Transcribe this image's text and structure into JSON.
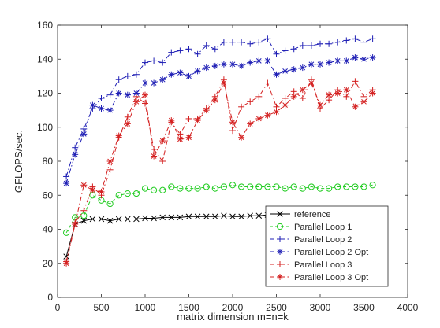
{
  "chart_data": {
    "type": "line",
    "title": "",
    "xlabel": "matrix dimension m=n=k",
    "ylabel": "GFLOPS/sec.",
    "xlim": [
      0,
      4000
    ],
    "ylim": [
      0,
      160
    ],
    "xticks": [
      0,
      500,
      1000,
      1500,
      2000,
      2500,
      3000,
      3500,
      4000
    ],
    "yticks": [
      0,
      20,
      40,
      60,
      80,
      100,
      120,
      140,
      160
    ],
    "grid": false,
    "legend_position": "bottom-right",
    "x": [
      100,
      200,
      300,
      400,
      500,
      600,
      700,
      800,
      900,
      1000,
      1100,
      1200,
      1300,
      1400,
      1500,
      1600,
      1700,
      1800,
      1900,
      2000,
      2100,
      2200,
      2300,
      2400,
      2500,
      2600,
      2700,
      2800,
      2900,
      3000,
      3100,
      3200,
      3300,
      3400,
      3500,
      3600
    ],
    "series": [
      {
        "name": "reference",
        "color": "#000000",
        "marker": "x",
        "dash": "solid",
        "values": [
          24,
          43,
          45,
          46,
          46,
          45,
          46,
          46,
          46,
          46.5,
          46.5,
          47,
          47,
          47,
          47.5,
          47.5,
          47.5,
          47.5,
          48,
          47.5,
          47.5,
          48,
          48,
          48.5,
          48,
          48,
          48,
          48,
          48,
          48,
          48,
          48,
          48,
          48,
          48,
          48
        ]
      },
      {
        "name": "Parallel Loop 1",
        "color": "#22cc22",
        "marker": "circle",
        "dash": "dashed",
        "values": [
          38,
          47,
          48,
          60,
          57,
          55,
          60,
          61,
          61,
          64,
          63,
          63,
          65,
          64,
          64,
          64,
          65,
          64,
          65,
          66,
          65,
          65,
          65,
          65,
          65,
          64,
          65,
          64,
          65,
          64,
          64,
          65,
          65,
          65,
          65,
          66
        ]
      },
      {
        "name": "Parallel Loop 2",
        "color": "#1f1fb5",
        "marker": "plus",
        "dash": "dashdot",
        "values": [
          71,
          88,
          99,
          111,
          117,
          119,
          128,
          130,
          131,
          138,
          139,
          138,
          144,
          145,
          146,
          143,
          148,
          146,
          150,
          150,
          150,
          149,
          150,
          152,
          143,
          145,
          146,
          148,
          148,
          149,
          149,
          150,
          151,
          152,
          150,
          152
        ]
      },
      {
        "name": "Parallel Loop 2 Opt",
        "color": "#1f1fb5",
        "marker": "star",
        "dash": "dashdot",
        "values": [
          67,
          84,
          96,
          113,
          111,
          110,
          120,
          119,
          120,
          126,
          126,
          128,
          131,
          132,
          130,
          133,
          135,
          136,
          137,
          137,
          136,
          138,
          139,
          139,
          131,
          133,
          134,
          135,
          137,
          137,
          138,
          139,
          139,
          141,
          140,
          141
        ]
      },
      {
        "name": "Parallel Loop 3",
        "color": "#d42020",
        "marker": "plus",
        "dash": "dashdot",
        "values": [
          21,
          44,
          51,
          65,
          60,
          75,
          94,
          106,
          118,
          114,
          87,
          80,
          103,
          96,
          105,
          105,
          111,
          118,
          128,
          98,
          112,
          115,
          118,
          126,
          112,
          117,
          121,
          117,
          128,
          111,
          116,
          122,
          118,
          127,
          118,
          122
        ]
      },
      {
        "name": "Parallel Loop 3 Opt",
        "color": "#d42020",
        "marker": "star",
        "dash": "dashdot",
        "values": [
          20,
          43,
          66,
          63,
          62,
          80,
          95,
          102,
          115,
          119,
          83,
          92,
          104,
          93,
          94,
          104,
          110,
          116,
          126,
          103,
          94,
          102,
          105,
          107,
          109,
          113,
          118,
          122,
          126,
          113,
          119,
          120,
          122,
          112,
          115,
          120
        ]
      }
    ]
  }
}
